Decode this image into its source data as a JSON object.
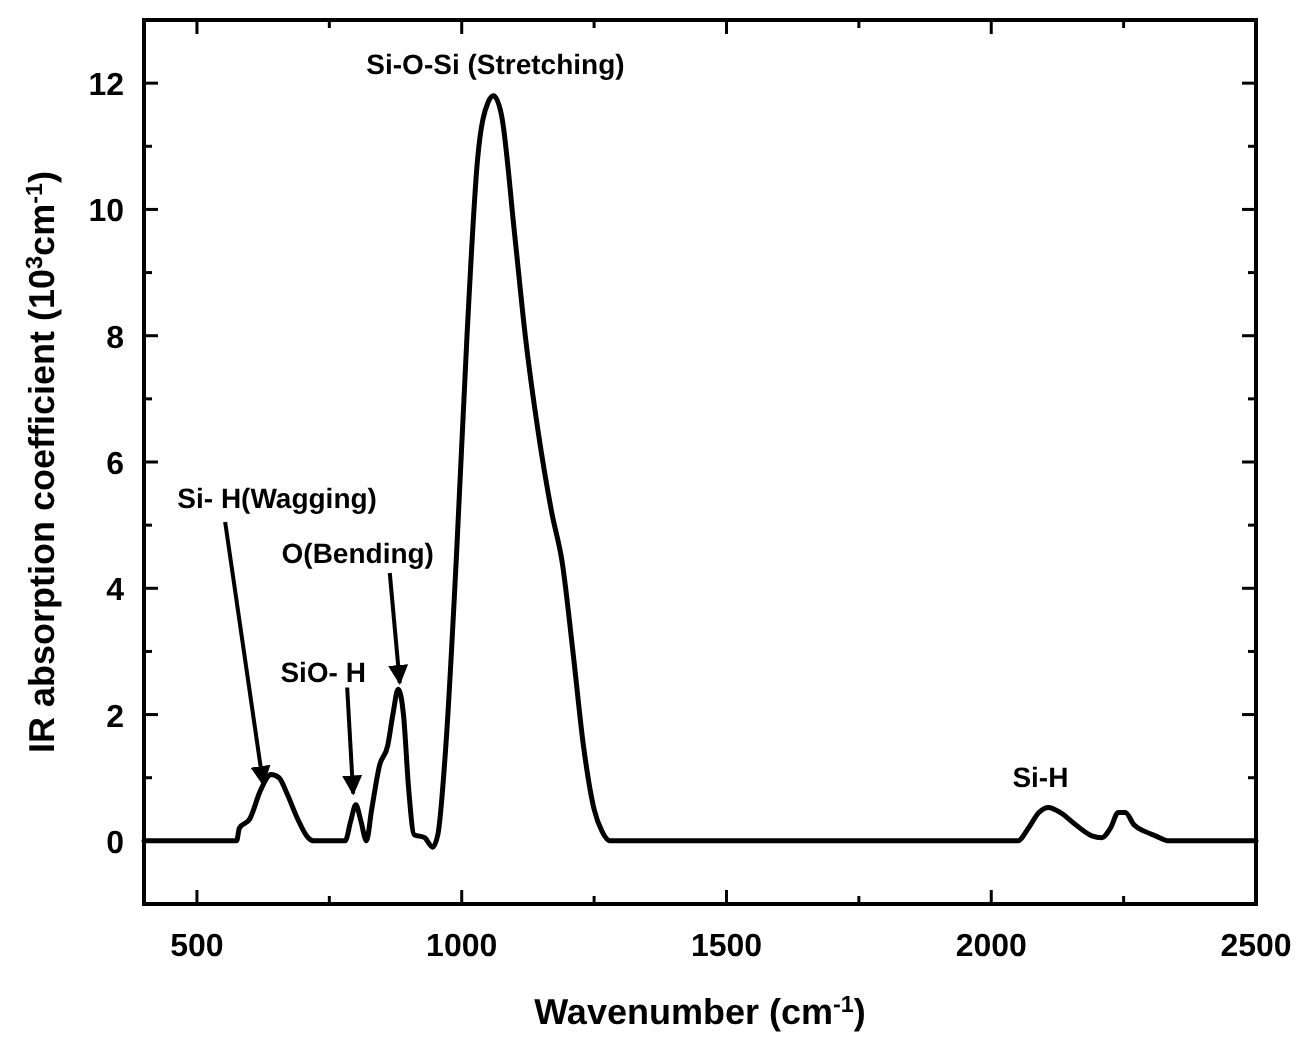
{
  "chart_data": {
    "type": "line",
    "xlabel": "Wavenumber (cm$^{-1}$)",
    "ylabel": "IR absorption coefficient (10$^{3}$cm$^{-1}$)",
    "xlim": [
      400,
      2500
    ],
    "ylim": [
      -1,
      13
    ],
    "xticks": [
      500,
      {
        "value": 750,
        "label": null
      },
      1000,
      {
        "value": 1250,
        "label": null
      },
      1500,
      {
        "value": 1750,
        "label": null
      },
      2000,
      {
        "value": 2250,
        "label": null
      },
      2500
    ],
    "yticks": [
      {
        "value": -1,
        "label": null
      },
      0,
      {
        "value": 1,
        "label": null
      },
      2,
      {
        "value": 3,
        "label": null
      },
      4,
      {
        "value": 5,
        "label": null
      },
      6,
      {
        "value": 7,
        "label": null
      },
      8,
      {
        "value": 9,
        "label": null
      },
      10,
      {
        "value": 11,
        "label": null
      },
      12,
      {
        "value": 13,
        "label": null
      }
    ],
    "grid": false,
    "marker": "none",
    "line_style": "solid",
    "series": [
      {
        "color": "#000000",
        "x": [
          400,
          575,
          580,
          600,
          620,
          640,
          655,
          670,
          690,
          710,
          720,
          780,
          790,
          800,
          810,
          820,
          830,
          845,
          860,
          870,
          880,
          890,
          900,
          910,
          930,
          945,
          955,
          970,
          990,
          1010,
          1030,
          1050,
          1060,
          1075,
          1100,
          1120,
          1144,
          1170,
          1190,
          1210,
          1230,
          1250,
          1265,
          1280,
          2050,
          2070,
          2090,
          2108,
          2130,
          2160,
          2190,
          2209,
          2225,
          2240,
          2253,
          2270,
          2290,
          2310,
          2336,
          2500
        ],
        "values": [
          0,
          0,
          0.2,
          0.35,
          0.8,
          1.05,
          1.0,
          0.75,
          0.35,
          0.05,
          0,
          0,
          0.3,
          0.57,
          0.3,
          0,
          0.5,
          1.2,
          1.5,
          2.0,
          2.4,
          2.0,
          0.8,
          0.1,
          0.05,
          -0.1,
          0.1,
          1.5,
          4.5,
          8,
          10.8,
          11.7,
          11.8,
          11.5,
          9.6,
          8.0,
          6.5,
          5.2,
          4.4,
          3.0,
          1.5,
          0.5,
          0.15,
          0,
          0,
          0.2,
          0.45,
          0.53,
          0.45,
          0.25,
          0.08,
          0.05,
          0.2,
          0.45,
          0.45,
          0.25,
          0.15,
          0.08,
          0,
          0
        ]
      }
    ],
    "annotations": [
      {
        "text": "Si- H(Wagging)",
        "x": 625,
        "y": 0.9
      },
      {
        "text": "SiO- H",
        "x": 795,
        "y": 0.75
      },
      {
        "text": "O(Bending)",
        "x": 883,
        "y": 2.5
      },
      {
        "text": "Si-O-Si (Stretching)",
        "x": 1060,
        "y": 11.8
      },
      {
        "text": "Si-H",
        "x": 2108,
        "y": 0.53
      }
    ]
  }
}
